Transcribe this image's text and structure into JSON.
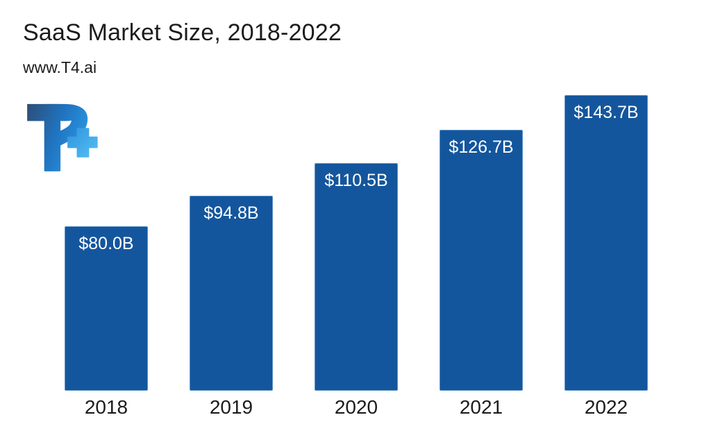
{
  "header": {
    "title": "SaaS Market Size, 2018-2022",
    "source": "www.T4.ai"
  },
  "logo": {
    "name": "t4-logo",
    "text": "T4"
  },
  "colors": {
    "background": "#ffffff",
    "bar_fill": "#14569D",
    "bar_stroke": "#5d94c6",
    "bar_label_text": "#ffffff",
    "text_dark": "#1c1c1c",
    "logo_dark_blue": "#2d4d77",
    "logo_mid_blue": "#1f74c0",
    "logo_light_blue": "#2f9ce8",
    "logo_four_blue": "#4ab4f2"
  },
  "chart_data": {
    "type": "bar",
    "title": "SaaS Market Size, 2018-2022",
    "categories": [
      "2018",
      "2019",
      "2020",
      "2021",
      "2022"
    ],
    "values": [
      80.0,
      94.8,
      110.5,
      126.7,
      143.7
    ],
    "labels": [
      "$80.0B",
      "$94.8B",
      "$110.5B",
      "$126.7B",
      "$143.7B"
    ],
    "xlabel": "",
    "ylabel": "",
    "ylim": [
      0,
      143.7
    ],
    "grid": false,
    "legend": "none",
    "value_label_position": "inside-top",
    "bar_color": "#14569D"
  }
}
